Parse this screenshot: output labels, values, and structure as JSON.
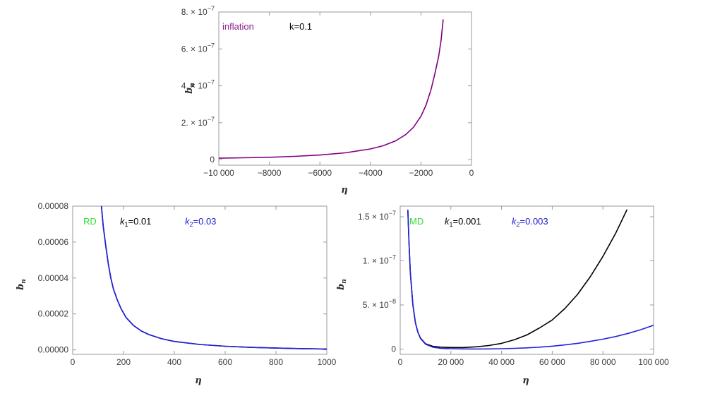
{
  "chart_data": [
    {
      "type": "line",
      "title": "",
      "xlabel": "η",
      "ylabel": "b_n",
      "xlim": [
        -10000,
        0
      ],
      "ylim": [
        -3e-08,
        8e-07
      ],
      "x_ticks": [
        {
          "v": -10000,
          "label": "−10 000"
        },
        {
          "v": -8000,
          "label": "−8000"
        },
        {
          "v": -6000,
          "label": "−6000"
        },
        {
          "v": -4000,
          "label": "−4000"
        },
        {
          "v": -2000,
          "label": "−2000"
        },
        {
          "v": 0,
          "label": "0"
        }
      ],
      "y_ticks": [
        {
          "v": 0,
          "label": "0",
          "pow": ""
        },
        {
          "v": 2e-07,
          "label": "2. × 10",
          "pow": "−7"
        },
        {
          "v": 4e-07,
          "label": "4. × 10",
          "pow": "−7"
        },
        {
          "v": 6e-07,
          "label": "6. × 10",
          "pow": "−7"
        },
        {
          "v": 8e-07,
          "label": "8. × 10",
          "pow": "−7"
        }
      ],
      "annotations": [
        {
          "text": "inflation",
          "color": "#8b1a8b"
        },
        {
          "text": "k=0.1",
          "color": "#000000"
        }
      ],
      "series": [
        {
          "color": "#800080",
          "points": [
            [
              -10000,
              8e-09
            ],
            [
              -9000,
              1e-08
            ],
            [
              -8000,
              1.3e-08
            ],
            [
              -7000,
              1.8e-08
            ],
            [
              -6000,
              2.5e-08
            ],
            [
              -5000,
              3.7e-08
            ],
            [
              -4000,
              5.8e-08
            ],
            [
              -3500,
              7.5e-08
            ],
            [
              -3000,
              1.02e-07
            ],
            [
              -2600,
              1.36e-07
            ],
            [
              -2300,
              1.75e-07
            ],
            [
              -2000,
              2.35e-07
            ],
            [
              -1800,
              2.95e-07
            ],
            [
              -1600,
              3.8e-07
            ],
            [
              -1450,
              4.65e-07
            ],
            [
              -1300,
              5.6e-07
            ],
            [
              -1200,
              6.5e-07
            ],
            [
              -1120,
              7.6e-07
            ]
          ]
        }
      ]
    },
    {
      "type": "line",
      "title": "",
      "xlabel": "η",
      "ylabel": "b_n",
      "xlim": [
        0,
        1000
      ],
      "ylim": [
        -2.5e-06,
        8e-05
      ],
      "x_ticks": [
        {
          "v": 0,
          "label": "0"
        },
        {
          "v": 200,
          "label": "200"
        },
        {
          "v": 400,
          "label": "400"
        },
        {
          "v": 600,
          "label": "600"
        },
        {
          "v": 800,
          "label": "800"
        },
        {
          "v": 1000,
          "label": "1000"
        }
      ],
      "y_ticks": [
        {
          "v": 0,
          "label": "0.00000",
          "pow": ""
        },
        {
          "v": 2e-05,
          "label": "0.00002",
          "pow": ""
        },
        {
          "v": 4e-05,
          "label": "0.00004",
          "pow": ""
        },
        {
          "v": 6e-05,
          "label": "0.00006",
          "pow": ""
        },
        {
          "v": 8e-05,
          "label": "0.00008",
          "pow": ""
        }
      ],
      "annotations": [
        {
          "text": "RD",
          "color": "#33dd33"
        },
        {
          "text": "k",
          "sub": "1",
          "rest": "=0.01",
          "color": "#000000"
        },
        {
          "text": "k",
          "sub": "2",
          "rest": "=0.03",
          "color": "#1a1acc"
        }
      ],
      "series": [
        {
          "color": "#000000",
          "points": [
            [
              113,
              8e-05
            ],
            [
              120,
              6.9e-05
            ],
            [
              130,
              5.8e-05
            ],
            [
              140,
              4.8e-05
            ],
            [
              150,
              4e-05
            ],
            [
              160,
              3.4e-05
            ],
            [
              175,
              2.8e-05
            ],
            [
              190,
              2.3e-05
            ],
            [
              210,
              1.8e-05
            ],
            [
              240,
              1.35e-05
            ],
            [
              270,
              1.05e-05
            ],
            [
              300,
              8.5e-06
            ],
            [
              350,
              6.2e-06
            ],
            [
              400,
              4.7e-06
            ],
            [
              500,
              3e-06
            ],
            [
              600,
              2e-06
            ],
            [
              700,
              1.4e-06
            ],
            [
              800,
              1e-06
            ],
            [
              900,
              7e-07
            ],
            [
              1000,
              5e-07
            ]
          ]
        },
        {
          "color": "#2222dd",
          "points": [
            [
              113,
              8e-05
            ],
            [
              120,
              6.9e-05
            ],
            [
              130,
              5.8e-05
            ],
            [
              140,
              4.8e-05
            ],
            [
              150,
              4e-05
            ],
            [
              160,
              3.4e-05
            ],
            [
              175,
              2.8e-05
            ],
            [
              190,
              2.3e-05
            ],
            [
              210,
              1.8e-05
            ],
            [
              240,
              1.35e-05
            ],
            [
              270,
              1.05e-05
            ],
            [
              300,
              8.5e-06
            ],
            [
              350,
              6.2e-06
            ],
            [
              400,
              4.7e-06
            ],
            [
              500,
              3e-06
            ],
            [
              600,
              2e-06
            ],
            [
              700,
              1.4e-06
            ],
            [
              800,
              1e-06
            ],
            [
              900,
              7e-07
            ],
            [
              1000,
              5e-07
            ]
          ]
        }
      ]
    },
    {
      "type": "line",
      "title": "",
      "xlabel": "η",
      "ylabel": "b_n",
      "xlim": [
        0,
        100000
      ],
      "ylim": [
        -6e-09,
        1.62e-07
      ],
      "x_ticks": [
        {
          "v": 0,
          "label": "0"
        },
        {
          "v": 20000,
          "label": "20 000"
        },
        {
          "v": 40000,
          "label": "40 000"
        },
        {
          "v": 60000,
          "label": "60 000"
        },
        {
          "v": 80000,
          "label": "80 000"
        },
        {
          "v": 100000,
          "label": "100 000"
        }
      ],
      "y_ticks": [
        {
          "v": 0,
          "label": "0",
          "pow": ""
        },
        {
          "v": 5e-08,
          "label": "5. × 10",
          "pow": "−8"
        },
        {
          "v": 1e-07,
          "label": "1. × 10",
          "pow": "−7"
        },
        {
          "v": 1.5e-07,
          "label": "1.5 × 10",
          "pow": "−7"
        }
      ],
      "annotations": [
        {
          "text": "MD",
          "color": "#33dd33"
        },
        {
          "text": "k",
          "sub": "1",
          "rest": "=0.001",
          "color": "#000000"
        },
        {
          "text": "k",
          "sub": "2",
          "rest": "=0.003",
          "color": "#1a1acc"
        }
      ],
      "series": [
        {
          "color": "#000000",
          "points": [
            [
              3000,
              1.58e-07
            ],
            [
              3500,
              1.18e-07
            ],
            [
              4000,
              8.6e-08
            ],
            [
              5000,
              5e-08
            ],
            [
              6000,
              3e-08
            ],
            [
              7000,
              1.9e-08
            ],
            [
              8000,
              1.25e-08
            ],
            [
              10000,
              6e-09
            ],
            [
              13000,
              3e-09
            ],
            [
              16000,
              2.2e-09
            ],
            [
              20000,
              1.8e-09
            ],
            [
              25000,
              1.8e-09
            ],
            [
              30000,
              2.6e-09
            ],
            [
              35000,
              4e-09
            ],
            [
              40000,
              6.5e-09
            ],
            [
              45000,
              1.05e-08
            ],
            [
              50000,
              1.6e-08
            ],
            [
              55000,
              2.4e-08
            ],
            [
              60000,
              3.3e-08
            ],
            [
              65000,
              4.6e-08
            ],
            [
              70000,
              6.2e-08
            ],
            [
              75000,
              8.2e-08
            ],
            [
              80000,
              1.05e-07
            ],
            [
              85000,
              1.31e-07
            ],
            [
              89500,
              1.58e-07
            ]
          ]
        },
        {
          "color": "#2222dd",
          "points": [
            [
              3000,
              1.58e-07
            ],
            [
              3500,
              1.18e-07
            ],
            [
              4000,
              8.6e-08
            ],
            [
              5000,
              5e-08
            ],
            [
              6000,
              3e-08
            ],
            [
              7000,
              1.9e-08
            ],
            [
              8000,
              1.2e-08
            ],
            [
              10000,
              5.5e-09
            ],
            [
              13000,
              2e-09
            ],
            [
              16000,
              8e-10
            ],
            [
              20000,
              4e-10
            ],
            [
              25000,
              2e-10
            ],
            [
              30000,
              1e-10
            ],
            [
              35000,
              2e-10
            ],
            [
              40000,
              4e-10
            ],
            [
              45000,
              8e-10
            ],
            [
              50000,
              1.4e-09
            ],
            [
              55000,
              2.2e-09
            ],
            [
              60000,
              3.3e-09
            ],
            [
              65000,
              4.7e-09
            ],
            [
              70000,
              6.5e-09
            ],
            [
              75000,
              8.7e-09
            ],
            [
              80000,
              1.12e-08
            ],
            [
              85000,
              1.42e-08
            ],
            [
              90000,
              1.78e-08
            ],
            [
              95000,
              2.2e-08
            ],
            [
              100000,
              2.7e-08
            ]
          ]
        }
      ]
    }
  ]
}
